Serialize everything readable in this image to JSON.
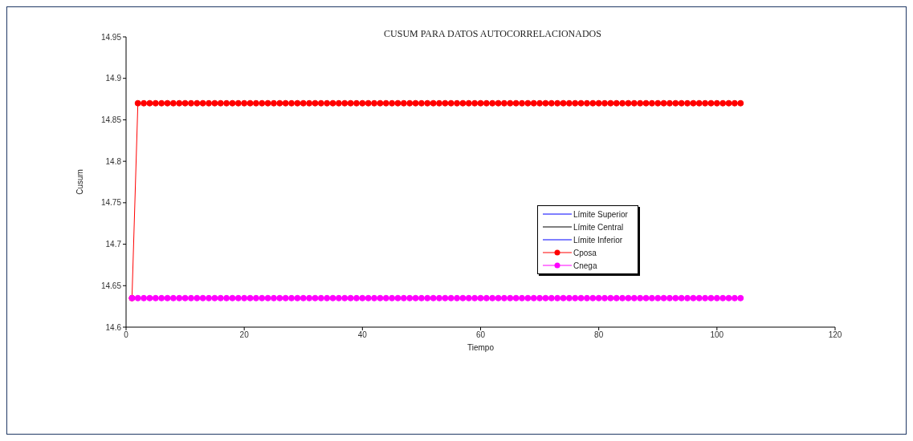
{
  "chart_data": {
    "type": "line",
    "title": "CUSUM PARA DATOS AUTOCORRELACIONADOS",
    "xlabel": "Tiempo",
    "ylabel": "Cusum",
    "x": [
      1,
      2,
      3,
      4,
      5,
      6,
      7,
      8,
      9,
      10,
      11,
      12,
      13,
      14,
      15,
      16,
      17,
      18,
      19,
      20,
      21,
      22,
      23,
      24,
      25,
      26,
      27,
      28,
      29,
      30,
      31,
      32,
      33,
      34,
      35,
      36,
      37,
      38,
      39,
      40,
      41,
      42,
      43,
      44,
      45,
      46,
      47,
      48,
      49,
      50,
      51,
      52,
      53,
      54,
      55,
      56,
      57,
      58,
      59,
      60,
      61,
      62,
      63,
      64,
      65,
      66,
      67,
      68,
      69,
      70,
      71,
      72,
      73,
      74,
      75,
      76,
      77,
      78,
      79,
      80,
      81,
      82,
      83,
      84,
      85,
      86,
      87,
      88,
      89,
      90,
      91,
      92,
      93,
      94,
      95,
      96,
      97,
      98,
      99,
      100,
      101,
      102,
      103,
      104
    ],
    "xlim": [
      0,
      120
    ],
    "xticks": [
      0,
      20,
      40,
      60,
      80,
      100,
      120
    ],
    "ylim": [
      14.6,
      14.95
    ],
    "yticks": [
      14.6,
      14.65,
      14.7,
      14.75,
      14.8,
      14.85,
      14.9,
      14.95
    ],
    "legend": "right",
    "line_style": "solid",
    "series": [
      {
        "name": "Límite Superior",
        "color": "#0000ff",
        "marker": "none",
        "values": [
          null,
          null,
          null,
          null,
          null,
          null,
          null,
          null,
          null,
          null,
          null,
          null,
          null,
          null,
          null,
          null,
          null,
          null,
          null,
          null,
          null,
          null,
          null,
          null,
          null,
          null,
          null,
          null,
          null,
          null,
          null,
          null,
          null,
          null,
          null,
          null,
          null,
          null,
          null,
          null,
          null,
          null,
          null,
          null,
          null,
          null,
          null,
          null,
          null,
          null,
          null,
          null,
          null,
          null,
          null,
          null,
          null,
          null,
          null,
          null,
          null,
          null,
          null,
          null,
          null,
          null,
          null,
          null,
          null,
          null,
          null,
          null,
          null,
          null,
          null,
          null,
          null,
          null,
          null,
          null,
          null,
          null,
          null,
          null,
          null,
          null,
          null,
          null,
          null,
          null,
          null,
          null,
          null,
          null,
          null,
          null,
          null,
          null,
          null,
          null,
          null,
          null,
          null,
          null
        ]
      },
      {
        "name": "Límite Central",
        "color": "#000000",
        "marker": "none",
        "values": [
          null,
          null,
          null,
          null,
          null,
          null,
          null,
          null,
          null,
          null,
          null,
          null,
          null,
          null,
          null,
          null,
          null,
          null,
          null,
          null,
          null,
          null,
          null,
          null,
          null,
          null,
          null,
          null,
          null,
          null,
          null,
          null,
          null,
          null,
          null,
          null,
          null,
          null,
          null,
          null,
          null,
          null,
          null,
          null,
          null,
          null,
          null,
          null,
          null,
          null,
          null,
          null,
          null,
          null,
          null,
          null,
          null,
          null,
          null,
          null,
          null,
          null,
          null,
          null,
          null,
          null,
          null,
          null,
          null,
          null,
          null,
          null,
          null,
          null,
          null,
          null,
          null,
          null,
          null,
          null,
          null,
          null,
          null,
          null,
          null,
          null,
          null,
          null,
          null,
          null,
          null,
          null,
          null,
          null,
          null,
          null,
          null,
          null,
          null,
          null,
          null,
          null,
          null,
          null
        ]
      },
      {
        "name": "Límite Inferior",
        "color": "#0000ff",
        "marker": "none",
        "values": [
          null,
          null,
          null,
          null,
          null,
          null,
          null,
          null,
          null,
          null,
          null,
          null,
          null,
          null,
          null,
          null,
          null,
          null,
          null,
          null,
          null,
          null,
          null,
          null,
          null,
          null,
          null,
          null,
          null,
          null,
          null,
          null,
          null,
          null,
          null,
          null,
          null,
          null,
          null,
          null,
          null,
          null,
          null,
          null,
          null,
          null,
          null,
          null,
          null,
          null,
          null,
          null,
          null,
          null,
          null,
          null,
          null,
          null,
          null,
          null,
          null,
          null,
          null,
          null,
          null,
          null,
          null,
          null,
          null,
          null,
          null,
          null,
          null,
          null,
          null,
          null,
          null,
          null,
          null,
          null,
          null,
          null,
          null,
          null,
          null,
          null,
          null,
          null,
          null,
          null,
          null,
          null,
          null,
          null,
          null,
          null,
          null,
          null,
          null,
          null,
          null,
          null,
          null,
          null
        ]
      },
      {
        "name": "Cposa",
        "color": "#ff0000",
        "marker": "circle",
        "values": [
          14.635,
          14.87,
          14.87,
          14.87,
          14.87,
          14.87,
          14.87,
          14.87,
          14.87,
          14.87,
          14.87,
          14.87,
          14.87,
          14.87,
          14.87,
          14.87,
          14.87,
          14.87,
          14.87,
          14.87,
          14.87,
          14.87,
          14.87,
          14.87,
          14.87,
          14.87,
          14.87,
          14.87,
          14.87,
          14.87,
          14.87,
          14.87,
          14.87,
          14.87,
          14.87,
          14.87,
          14.87,
          14.87,
          14.87,
          14.87,
          14.87,
          14.87,
          14.87,
          14.87,
          14.87,
          14.87,
          14.87,
          14.87,
          14.87,
          14.87,
          14.87,
          14.87,
          14.87,
          14.87,
          14.87,
          14.87,
          14.87,
          14.87,
          14.87,
          14.87,
          14.87,
          14.87,
          14.87,
          14.87,
          14.87,
          14.87,
          14.87,
          14.87,
          14.87,
          14.87,
          14.87,
          14.87,
          14.87,
          14.87,
          14.87,
          14.87,
          14.87,
          14.87,
          14.87,
          14.87,
          14.87,
          14.87,
          14.87,
          14.87,
          14.87,
          14.87,
          14.87,
          14.87,
          14.87,
          14.87,
          14.87,
          14.87,
          14.87,
          14.87,
          14.87,
          14.87,
          14.87,
          14.87,
          14.87,
          14.87,
          14.87,
          14.87,
          14.87,
          14.87
        ]
      },
      {
        "name": "Cnega",
        "color": "#ff00ff",
        "marker": "circle",
        "values": [
          14.635,
          14.635,
          14.635,
          14.635,
          14.635,
          14.635,
          14.635,
          14.635,
          14.635,
          14.635,
          14.635,
          14.635,
          14.635,
          14.635,
          14.635,
          14.635,
          14.635,
          14.635,
          14.635,
          14.635,
          14.635,
          14.635,
          14.635,
          14.635,
          14.635,
          14.635,
          14.635,
          14.635,
          14.635,
          14.635,
          14.635,
          14.635,
          14.635,
          14.635,
          14.635,
          14.635,
          14.635,
          14.635,
          14.635,
          14.635,
          14.635,
          14.635,
          14.635,
          14.635,
          14.635,
          14.635,
          14.635,
          14.635,
          14.635,
          14.635,
          14.635,
          14.635,
          14.635,
          14.635,
          14.635,
          14.635,
          14.635,
          14.635,
          14.635,
          14.635,
          14.635,
          14.635,
          14.635,
          14.635,
          14.635,
          14.635,
          14.635,
          14.635,
          14.635,
          14.635,
          14.635,
          14.635,
          14.635,
          14.635,
          14.635,
          14.635,
          14.635,
          14.635,
          14.635,
          14.635,
          14.635,
          14.635,
          14.635,
          14.635,
          14.635,
          14.635,
          14.635,
          14.635,
          14.635,
          14.635,
          14.635,
          14.635,
          14.635,
          14.635,
          14.635,
          14.635,
          14.635,
          14.635,
          14.635,
          14.635,
          14.635,
          14.635,
          14.635,
          14.635
        ]
      }
    ]
  }
}
